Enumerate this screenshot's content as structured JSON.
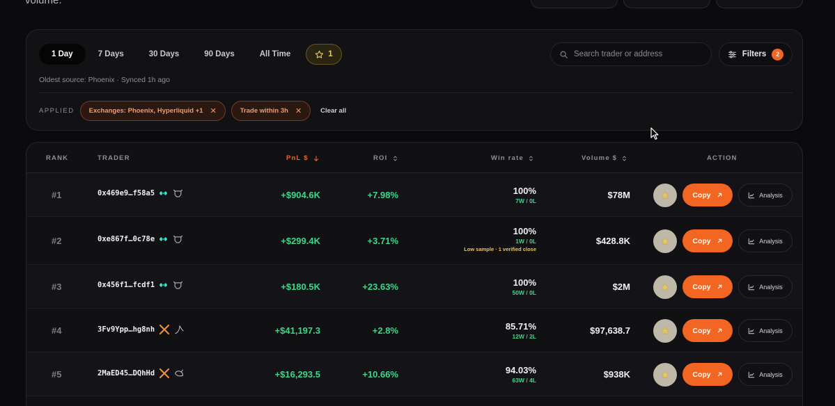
{
  "header": {
    "fragment": "volume."
  },
  "tabs": [
    {
      "label": "1 Day",
      "active": true
    },
    {
      "label": "7 Days",
      "active": false
    },
    {
      "label": "30 Days",
      "active": false
    },
    {
      "label": "90 Days",
      "active": false
    },
    {
      "label": "All Time",
      "active": false
    }
  ],
  "starred": {
    "count": "1",
    "icon": "star-icon"
  },
  "search": {
    "placeholder": "Search trader or address",
    "value": ""
  },
  "filters": {
    "label": "Filters",
    "count": "2"
  },
  "synced": "Oldest source: Phoenix · Synced 1h ago",
  "applied": {
    "label": "APPLIED",
    "chips": [
      {
        "label": "Exchanges: Phoenix, Hyperliquid +1"
      },
      {
        "label": "Trade within 3h"
      }
    ],
    "clear_label": "Clear all"
  },
  "table": {
    "columns": {
      "rank": "RANK",
      "trader": "TRADER",
      "pnl": "PnL $",
      "roi": "ROI",
      "win_rate": "Win rate",
      "volume": "Volume $",
      "action": "ACTION"
    },
    "rows": [
      {
        "rank": "#1",
        "trader": "0x469e9…f58a5",
        "pnl": "+$904.6K",
        "roi": "+7.98%",
        "win": "100%",
        "wins": "7W",
        "losses": "0L",
        "note": "",
        "volume": "$78M",
        "exchange": "hyperliquid"
      },
      {
        "rank": "#2",
        "trader": "0xe867f…0c78e",
        "pnl": "+$299.4K",
        "roi": "+3.71%",
        "win": "100%",
        "wins": "1W",
        "losses": "0L",
        "note": "Low sample · 1 verified close",
        "volume": "$428.8K",
        "exchange": "hyperliquid"
      },
      {
        "rank": "#3",
        "trader": "0x456f1…fcdf1",
        "pnl": "+$180.5K",
        "roi": "+23.63%",
        "win": "100%",
        "wins": "50W",
        "losses": "0L",
        "note": "",
        "volume": "$2M",
        "exchange": "hyperliquid"
      },
      {
        "rank": "#4",
        "trader": "3Fv9Ypp…hg8nh",
        "pnl": "+$41,197.3",
        "roi": "+2.8%",
        "win": "85.71%",
        "wins": "12W",
        "losses": "2L",
        "note": "",
        "volume": "$97,638.7",
        "exchange": "phoenix"
      },
      {
        "rank": "#5",
        "trader": "2MaED45…DQhHd",
        "pnl": "+$16,293.5",
        "roi": "+10.66%",
        "win": "94.03%",
        "wins": "63W",
        "losses": "4L",
        "note": "",
        "volume": "$938K",
        "exchange": "phoenix"
      }
    ],
    "copy_label": "Copy",
    "analysis_label": "Analysis"
  },
  "colors": {
    "accent": "#f26522",
    "positive": "#3fd68a",
    "star": "#e7c56a"
  }
}
